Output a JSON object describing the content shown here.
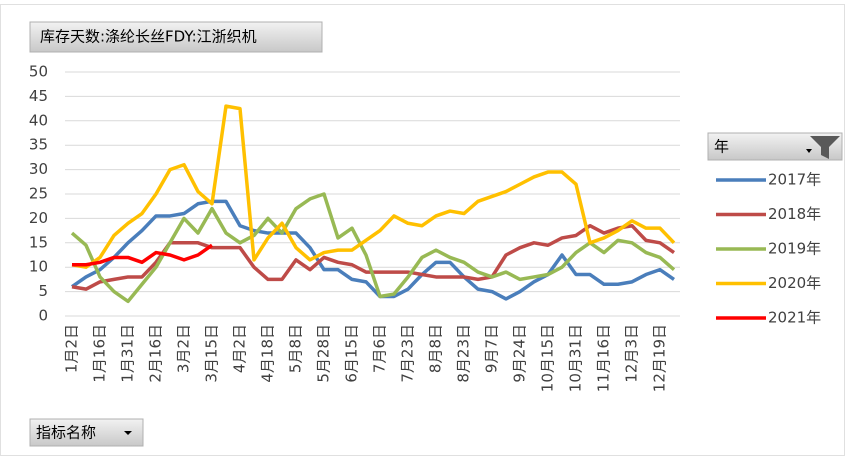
{
  "chart_data": {
    "type": "line",
    "title": "库存天数:涤纶长丝FDY:江浙织机",
    "categories": [
      "1月2日",
      null,
      "1月16日",
      null,
      "1月31日",
      null,
      "2月16日",
      null,
      "3月2日",
      null,
      "3月15日",
      null,
      "4月2日",
      null,
      "4月18日",
      null,
      "5月8日",
      null,
      "5月28日",
      null,
      "6月15日",
      null,
      "7月6日",
      null,
      "7月23日",
      null,
      "8月8日",
      null,
      "8月23日",
      null,
      "9月7日",
      null,
      "9月24日",
      null,
      "10月15日",
      null,
      "10月31日",
      null,
      "11月16日",
      null,
      "12月3日",
      null,
      "12月19日",
      null
    ],
    "series": [
      {
        "name": "2017年",
        "color": "#4a7ebb",
        "values": [
          6,
          8,
          9.5,
          12,
          15,
          17.5,
          20.5,
          20.5,
          21,
          23,
          23.5,
          23.5,
          18.5,
          17.5,
          17,
          17,
          17,
          14,
          9.5,
          9.5,
          7.5,
          7,
          4,
          4,
          5.5,
          8.5,
          11,
          11,
          8,
          5.5,
          5,
          3.5,
          5,
          7,
          8.5,
          12.5,
          8.5,
          8.5,
          6.5,
          6.5,
          7,
          8.5,
          9.5,
          7.5
        ]
      },
      {
        "name": "2018年",
        "color": "#be4b48",
        "values": [
          6,
          5.5,
          7,
          7.5,
          8,
          8,
          11,
          15,
          15,
          15,
          14,
          14,
          14,
          10,
          7.5,
          7.5,
          11.5,
          9.5,
          12,
          11,
          10.5,
          9,
          9,
          9,
          9,
          8.5,
          8,
          8,
          8,
          7.5,
          8,
          12.5,
          14,
          15,
          14.5,
          16,
          16.5,
          18.5,
          17,
          18,
          18.5,
          15.5,
          15,
          13
        ]
      },
      {
        "name": "2019年",
        "color": "#98b954",
        "values": [
          17,
          14.5,
          8,
          5,
          3,
          6.5,
          10,
          15,
          20,
          17,
          22,
          17,
          15,
          16.5,
          20,
          17,
          22,
          24,
          25,
          16,
          18,
          12.5,
          4,
          4.5,
          8,
          12,
          13.5,
          12,
          11,
          9,
          8,
          9,
          7.5,
          8,
          8.5,
          10,
          13,
          15,
          13,
          15.5,
          15,
          13,
          12,
          9.5
        ]
      },
      {
        "name": "2020年",
        "color": "#ffc000",
        "values": [
          10.5,
          10,
          12,
          16.5,
          19,
          21,
          25,
          30,
          31,
          25.5,
          23,
          43,
          42.5,
          11.5,
          16,
          19,
          14,
          11.5,
          13,
          13.5,
          13.5,
          15.5,
          17.5,
          20.5,
          19,
          18.5,
          20.5,
          21.5,
          21,
          23.5,
          24.5,
          25.5,
          27,
          28.5,
          29.5,
          29.5,
          27,
          15,
          16,
          17.5,
          19.5,
          18,
          18,
          15
        ]
      },
      {
        "name": "2021年",
        "color": "#ff0000",
        "values": [
          10.5,
          10.5,
          11,
          12,
          12,
          11,
          13,
          12.5,
          11.5,
          12.5,
          14.5,
          null,
          null,
          null,
          null,
          null,
          null,
          null,
          null,
          null,
          null,
          null,
          null,
          null,
          null,
          null,
          null,
          null,
          null,
          null,
          null,
          null,
          null,
          null,
          null,
          null,
          null,
          null,
          null,
          null,
          null,
          null,
          null,
          null
        ]
      }
    ],
    "ylim": [
      0,
      50
    ],
    "yticks": [
      0,
      5,
      10,
      15,
      20,
      25,
      30,
      35,
      40,
      45,
      50
    ],
    "grid": true,
    "legend_title": "年",
    "field_button": "指标名称"
  }
}
